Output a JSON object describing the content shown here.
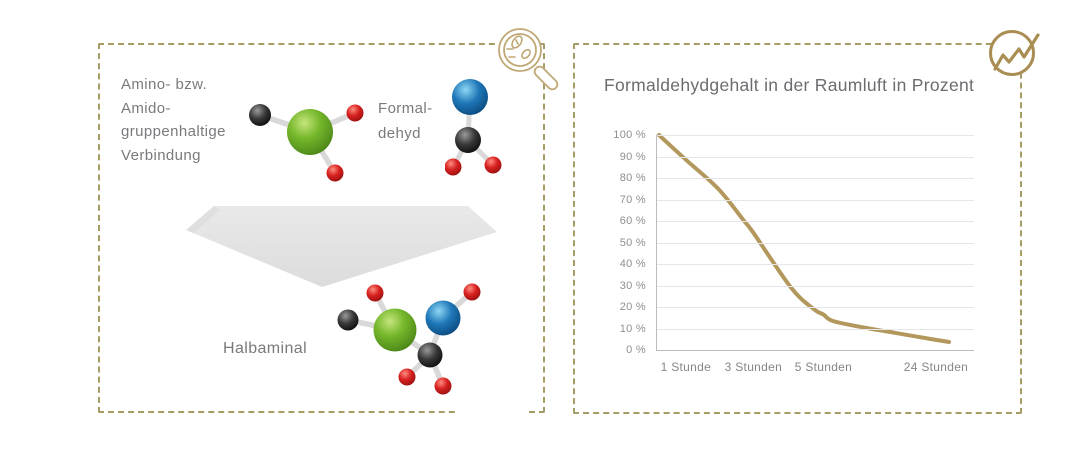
{
  "left_panel": {
    "reactant_label": "Amino- bzw.\nAmido-\ngruppenhaltige\nVerbindung",
    "formaldehyde_label": "Formal-\ndehyd",
    "product_label": "Halbaminal",
    "icons": {
      "corner_icon": "magnifier-with-microbes-icon"
    },
    "molecules": [
      "amino-compound",
      "formaldehyde",
      "halbaminal"
    ]
  },
  "right_panel": {
    "icons": {
      "corner_icon": "trending-line-chart-icon"
    }
  },
  "chart_data": {
    "type": "line",
    "title": "Formaldehydgehalt in der Raumluft in Prozent",
    "categories": [
      "1 Stunde",
      "3 Stunden",
      "5 Stunden",
      "24 Stunden"
    ],
    "category_x_percent": [
      9.1,
      30.4,
      52.5,
      88.0
    ],
    "values_at_categories": [
      88,
      55,
      17,
      5
    ],
    "start_value_percent": 100,
    "y_ticks": [
      "100 %",
      "90 %",
      "80 %",
      "70 %",
      "60 %",
      "50 %",
      "40 %",
      "30 %",
      "20 %",
      "10 %",
      "0 %"
    ],
    "ylim": [
      0,
      100
    ],
    "grid": "horizontal",
    "legend": "none",
    "line_color": "#b3985e",
    "curve_points": [
      [
        0.6,
        100
      ],
      [
        9.1,
        88.5
      ],
      [
        19.3,
        75
      ],
      [
        27.5,
        60
      ],
      [
        30.4,
        54.5
      ],
      [
        42.3,
        29
      ],
      [
        49.5,
        19
      ],
      [
        52.5,
        16.5
      ],
      [
        55.5,
        13.5
      ],
      [
        65,
        10.5
      ],
      [
        75,
        8
      ],
      [
        88.0,
        4.7
      ],
      [
        92.1,
        3.7
      ]
    ]
  },
  "colors": {
    "panel_border": "#a59c66",
    "gold_accent": "#b3985e",
    "icon_gold_light": "#c0a876",
    "icon_gold_dark": "#a98d52",
    "text_gray": "#797a7d",
    "title_gray": "#6b6c6f",
    "gridline": "#e5e5ea",
    "ball_green": "#76b82c",
    "ball_red": "#d6201f",
    "ball_blue": "#1f77b8",
    "ball_black": "#2f2f2f",
    "arrow_gray": "#e2e2e2"
  }
}
